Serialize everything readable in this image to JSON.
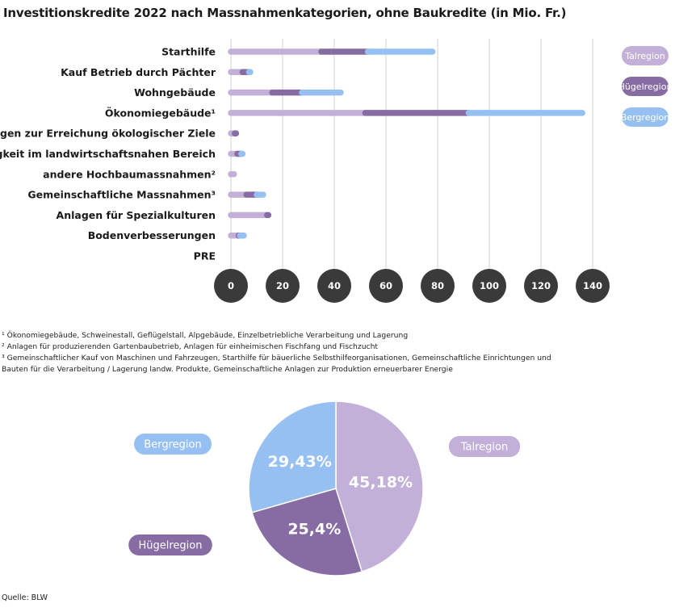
{
  "title": "Investitionskredite 2022 nach Massnahmenkategorien, ohne Baukredite (in Mio. Fr.)",
  "colors": {
    "Talregion": "#c3b0d8",
    "Hügelregion": "#876ca4",
    "Bergregion": "#97c0f2",
    "grid": "#d0d0d0",
    "tick_bg": "#3a3a3a"
  },
  "chart_data": [
    {
      "type": "bar",
      "orientation": "horizontal",
      "stacked": true,
      "categories": [
        "Starthilfe",
        "Kauf Betrieb durch Pächter",
        "Wohngebäude",
        "Ökonomiegebäude¹",
        "Anlagen zur Erreichung ökologischer Ziele",
        "Tätigkeit im landwirtschaftsnahen Bereich",
        "andere Hochbaumassnahmen²",
        "Gemeinschaftliche Massnahmen³",
        "Anlagen für Spezialkulturen",
        "Bodenverbesserungen",
        "PRE"
      ],
      "series": [
        {
          "name": "Talregion",
          "values": [
            35,
            4.5,
            16,
            52,
            1.5,
            2.5,
            1.2,
            6,
            14,
            3,
            0
          ]
        },
        {
          "name": "Hügelregion",
          "values": [
            18,
            2.5,
            11.5,
            40,
            0.5,
            1.5,
            0,
            4,
            0.5,
            0.5,
            0
          ]
        },
        {
          "name": "Bergregion",
          "values": [
            25,
            0.5,
            15,
            44,
            0,
            0.5,
            0,
            2.5,
            0,
            1.5,
            0
          ]
        }
      ],
      "xticks": [
        0,
        20,
        40,
        60,
        80,
        100,
        120,
        140
      ],
      "xlim": [
        0,
        140
      ],
      "grid": true,
      "legend_position": "right"
    },
    {
      "type": "pie",
      "labels": [
        "Talregion",
        "Hügelregion",
        "Bergregion"
      ],
      "values": [
        45.18,
        25.4,
        29.43
      ],
      "value_labels": [
        "45,18%",
        "25,4%",
        "29,43%"
      ],
      "legend_position": "around"
    }
  ],
  "footnotes": [
    "¹ Ökonomiegebäude, Schweinestall, Geflügelstall, Alpgebäude, Einzelbetriebliche Verarbeitung und Lagerung",
    "² Anlagen für produzierenden Gartenbaubetrieb, Anlagen für einheimischen Fischfang und Fischzucht",
    "³ Gemeinschaftlicher Kauf von Maschinen und Fahrzeugen, Starthilfe für bäuerliche Selbsthilfeorganisationen, Gemeinschaftliche Einrichtungen und",
    "Bauten für die Verarbeitung / Lagerung landw. Produkte, Gemeinschaftliche Anlagen zur Produktion erneuerbarer Energie"
  ],
  "source": "Quelle: BLW"
}
